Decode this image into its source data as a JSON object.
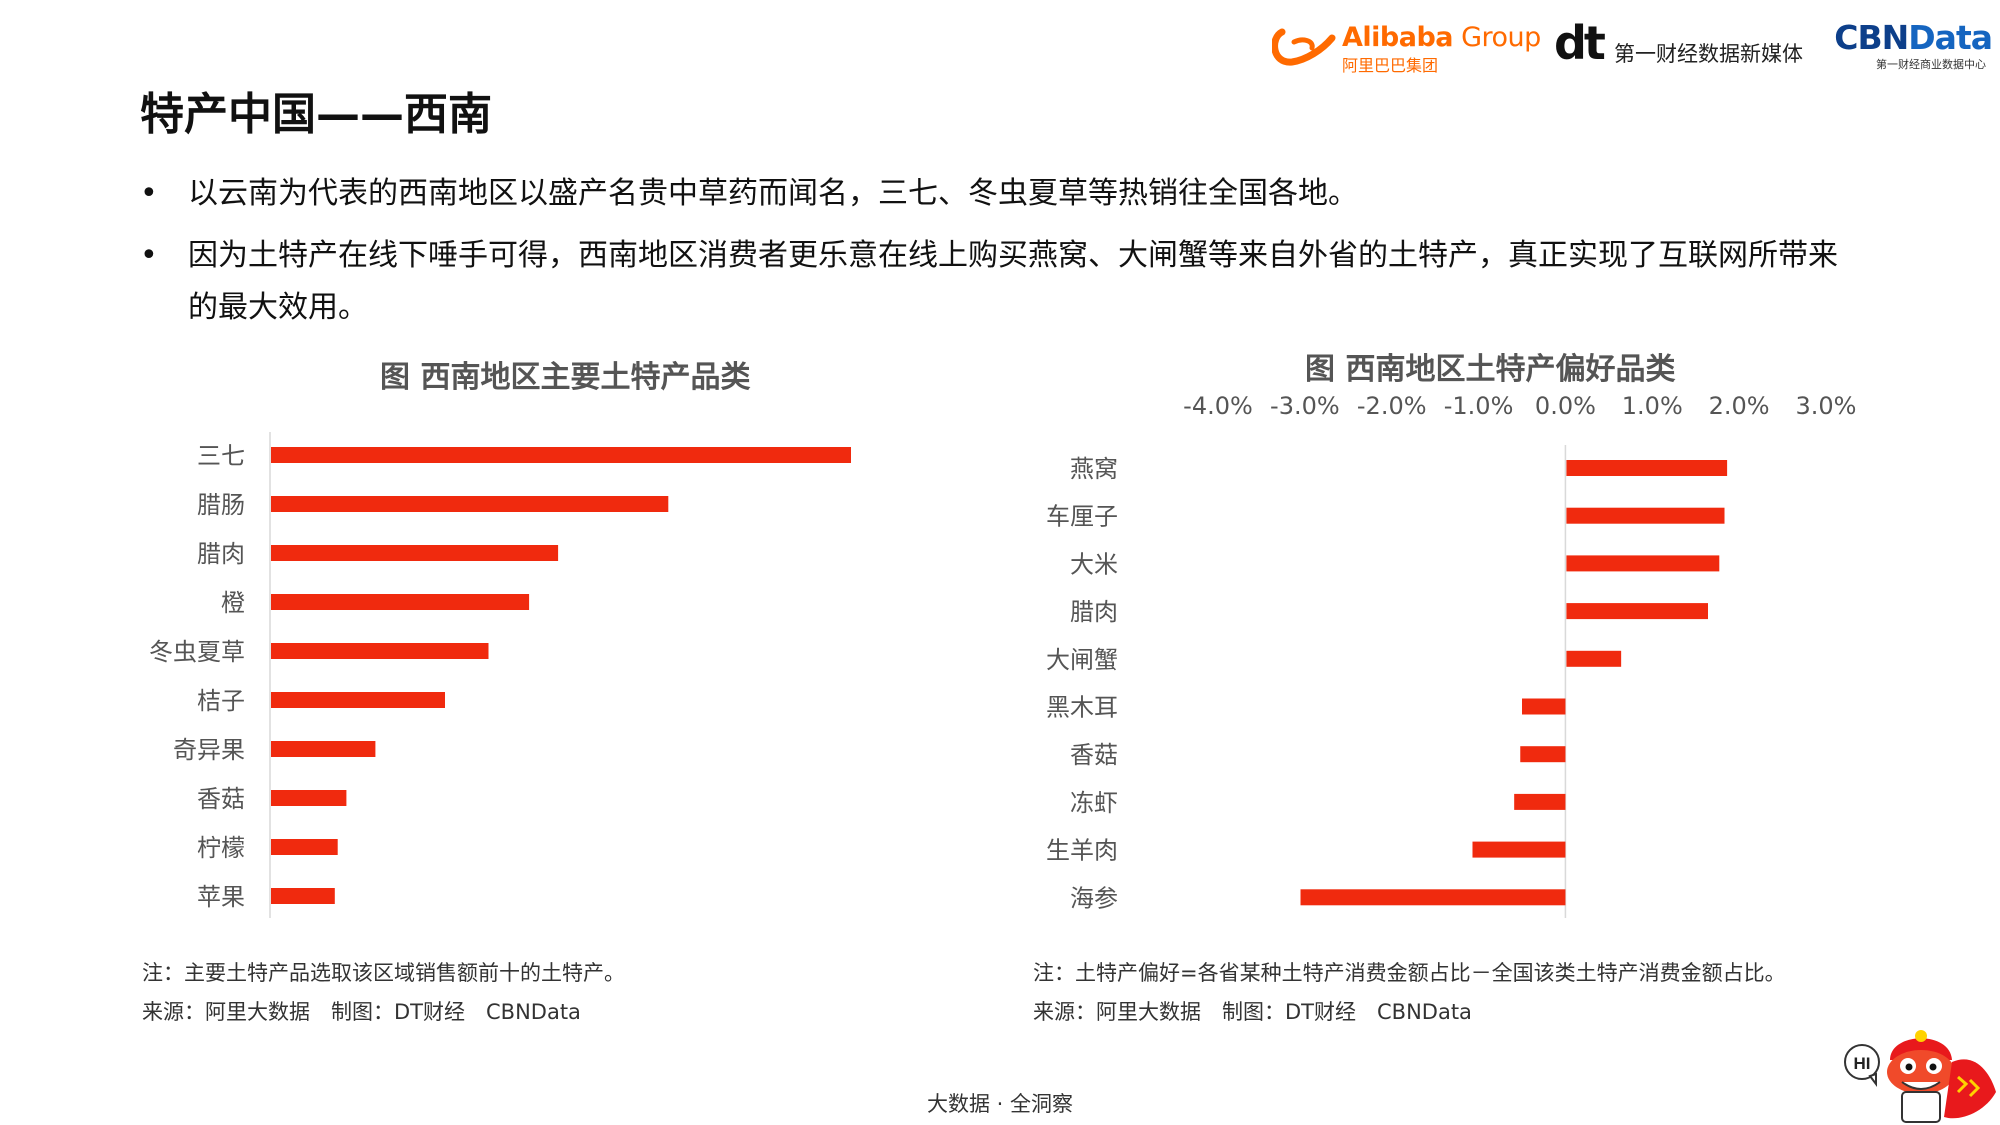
{
  "logos": {
    "alibaba_name": "Alibaba",
    "alibaba_group": " Group",
    "alibaba_cn": "阿里巴巴集团",
    "dt_mark": "dt",
    "dt_text": "第一财经数据新媒体",
    "cbn_b": "CBN",
    "cbn_rest": "Data",
    "cbn_sub": "第一财经商业数据中心"
  },
  "page": {
    "title": "特产中国——西南",
    "bullet_symbol": "•",
    "bullets": [
      "以云南为代表的西南地区以盛产名贵中草药而闻名，三七、冬虫夏草等热销往全国各地。",
      "因为土特产在线下唾手可得，西南地区消费者更乐意在线上购买燕窝、大闸蟹等来自外省的土特产，真正实现了互联网所带来的最大效用。"
    ],
    "footer": "大数据 · 全洞察"
  },
  "notes": {
    "left_note": "注：主要土特产品选取该区域销售额前十的土特产。",
    "left_source": "来源：阿里大数据　制图：DT财经　CBNData",
    "right_note": "注：土特产偏好=各省某种土特产消费金额占比－全国该类土特产消费金额占比。",
    "right_source": "来源：阿里大数据　制图：DT财经　CBNData"
  },
  "mascot": {
    "bubble": "HI"
  },
  "colors": {
    "bar": "#f02a0e",
    "axis": "#d9d9d9",
    "text": "#555555"
  },
  "chart_data": [
    {
      "type": "bar",
      "orientation": "horizontal",
      "title": "图 西南地区主要土特产品类",
      "categories": [
        "三七",
        "腊肠",
        "腊肉",
        "橙",
        "冬虫夏草",
        "桔子",
        "奇异果",
        "香菇",
        "柠檬",
        "苹果"
      ],
      "values": [
        100,
        68.5,
        49.5,
        44.5,
        37.5,
        30,
        18,
        13,
        11.5,
        11
      ],
      "value_axis_shown": false,
      "grid": false,
      "legend": "none"
    },
    {
      "type": "bar",
      "orientation": "horizontal",
      "title": "图 西南地区土特产偏好品类",
      "categories": [
        "燕窝",
        "车厘子",
        "大米",
        "腊肉",
        "大闸蟹",
        "黑木耳",
        "香菇",
        "冻虾",
        "生羊肉",
        "海参"
      ],
      "values": [
        1.85,
        1.82,
        1.76,
        1.63,
        0.63,
        -0.5,
        -0.52,
        -0.59,
        -1.07,
        -3.05
      ],
      "unit": "%",
      "xlim": [
        -4.0,
        3.0
      ],
      "x_ticks": [
        -4.0,
        -3.0,
        -2.0,
        -1.0,
        0.0,
        1.0,
        2.0,
        3.0
      ],
      "x_tick_labels": [
        "-4.0%",
        "-3.0%",
        "-2.0%",
        "-1.0%",
        "0.0%",
        "1.0%",
        "2.0%",
        "3.0%"
      ],
      "axis_position": "top",
      "grid": false,
      "legend": "none"
    }
  ]
}
